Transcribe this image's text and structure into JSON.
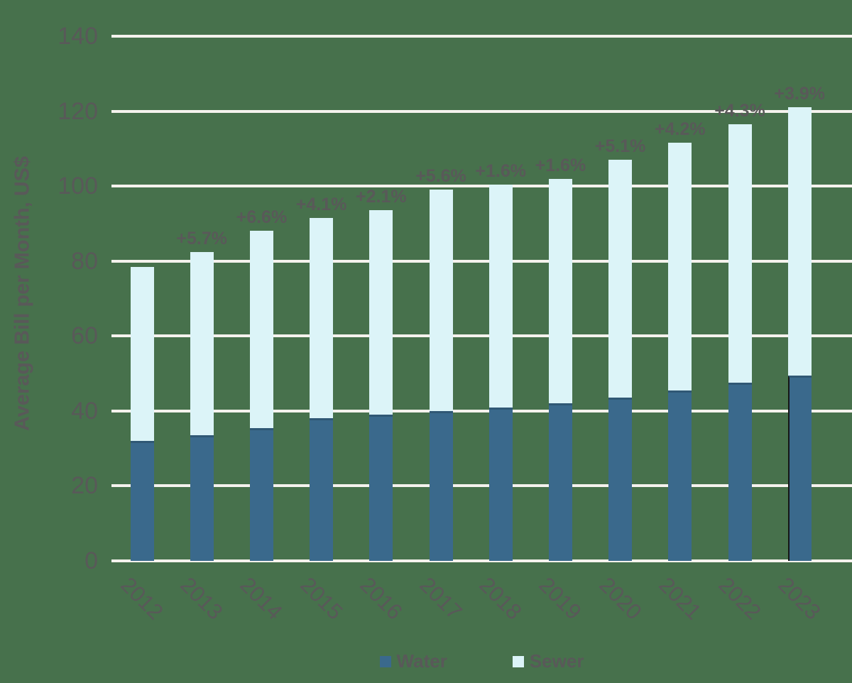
{
  "chart_data": {
    "type": "bar",
    "stacked": true,
    "title": "",
    "xlabel": "",
    "ylabel": "Average Bill per Month, US$",
    "categories": [
      "2012",
      "2013",
      "2014",
      "2015",
      "2016",
      "2017",
      "2018",
      "2019",
      "2020",
      "2021",
      "2022",
      "2023"
    ],
    "series": [
      {
        "name": "Water",
        "color": "#3A698C",
        "values": [
          32,
          33.5,
          35.5,
          38,
          39,
          40,
          41,
          42,
          43.5,
          45.5,
          47.5,
          49.5
        ]
      },
      {
        "name": "Sewer",
        "color": "#DCF4F8",
        "values": [
          46.5,
          49,
          52.5,
          53.5,
          54.5,
          59,
          59.5,
          60,
          63.5,
          66,
          69,
          71.5
        ]
      }
    ],
    "stack_totals": [
      78.5,
      82.5,
      88,
      91.5,
      93.5,
      99,
      100.5,
      102,
      107,
      111.5,
      116.5,
      121
    ],
    "annotations": [
      "",
      "+5.7%",
      "+6.6%",
      "+4.1%",
      "+2.1%",
      "+5.6%",
      "+1.6%",
      "+1.6%",
      "+5.1%",
      "+4.2%",
      "+4.3%",
      "+3.9%"
    ],
    "ylim": [
      0,
      140
    ],
    "yticks": [
      0,
      20,
      40,
      60,
      80,
      100,
      120,
      140
    ],
    "grid": true,
    "legend_position": "bottom",
    "colors": {
      "background": "#47714C",
      "gridline": "#F5F2ED",
      "text": "#595959"
    }
  }
}
